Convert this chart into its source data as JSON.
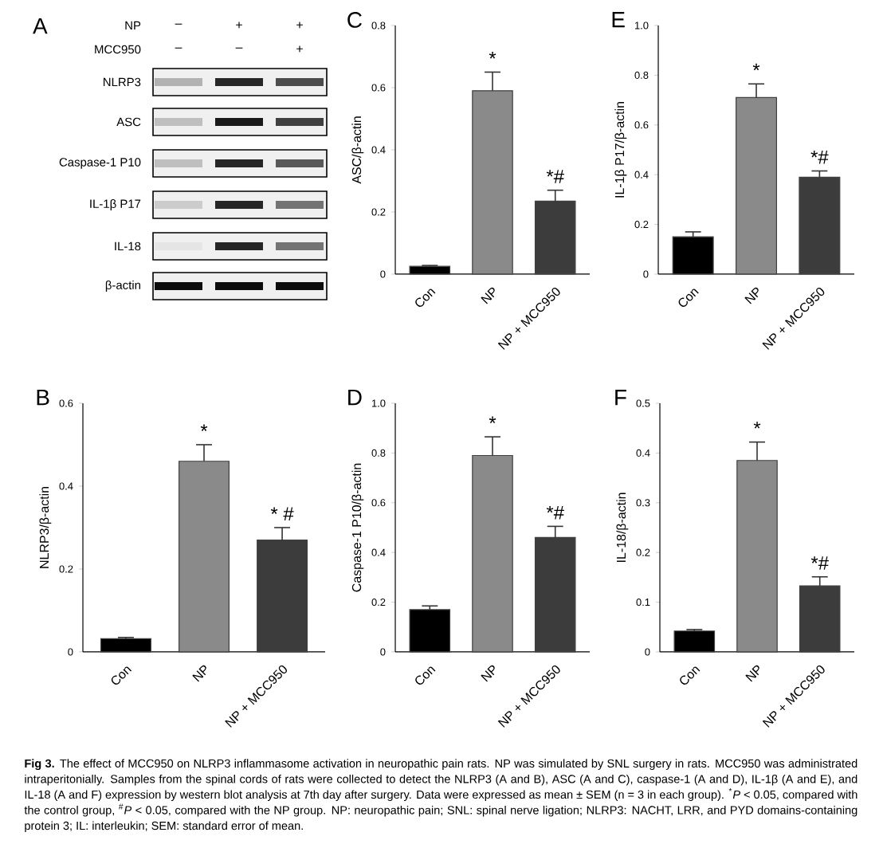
{
  "chart_data": [
    {
      "type": "other",
      "title": "A",
      "categories": [
        "NLRP3",
        "ASC",
        "Caspase-1 P10",
        "IL-1β P17",
        "IL-18",
        "β-actin"
      ],
      "annotations": [
        "NP",
        "MCC950",
        "–",
        "+",
        "+",
        "–",
        "–",
        "+"
      ]
    },
    {
      "type": "bar",
      "title": "C",
      "ylabel": "ASC/β-actin",
      "categories": [
        "Con",
        "NP",
        "NP + MCC950"
      ],
      "values": [
        0.025,
        0.59,
        0.235
      ],
      "errors": [
        [
          0.025,
          0.028
        ],
        [
          0.59,
          0.65
        ],
        [
          0.235,
          0.27
        ]
      ],
      "colors": [
        "#000000",
        "#8a8a8a",
        "#3c3c3c"
      ],
      "ylim": [
        0,
        0.8
      ],
      "yticks": [
        0,
        0.2,
        0.4,
        0.6,
        0.8
      ],
      "annotations": [
        {
          "text": "*",
          "x": "NP",
          "y": 0.65
        },
        {
          "text": "*#",
          "x": "NP + MCC950",
          "y": 0.27
        }
      ]
    },
    {
      "type": "bar",
      "title": "E",
      "ylabel": "IL-1β P17/β-actin",
      "categories": [
        "Con",
        "NP",
        "NP + MCC950"
      ],
      "values": [
        0.15,
        0.71,
        0.39
      ],
      "errors": [
        [
          0.15,
          0.17
        ],
        [
          0.71,
          0.765
        ],
        [
          0.39,
          0.415
        ]
      ],
      "colors": [
        "#000000",
        "#8a8a8a",
        "#3c3c3c"
      ],
      "ylim": [
        0,
        1.0
      ],
      "yticks": [
        0,
        0.2,
        0.4,
        0.6,
        0.8,
        {
          "value": 1.0,
          "label": "1.0"
        }
      ],
      "annotations": [
        {
          "text": "*",
          "x": "NP",
          "y": 0.765
        },
        {
          "text": "*#",
          "x": "NP + MCC950",
          "y": 0.415
        }
      ]
    },
    {
      "type": "bar",
      "title": "B",
      "ylabel": "NLRP3/β-actin",
      "categories": [
        "Con",
        "NP",
        "NP + MCC950"
      ],
      "values": [
        0.032,
        0.46,
        0.27
      ],
      "errors": [
        [
          0.032,
          0.035
        ],
        [
          0.46,
          0.5
        ],
        [
          0.27,
          0.3
        ]
      ],
      "colors": [
        "#000000",
        "#8a8a8a",
        "#3c3c3c"
      ],
      "ylim": [
        0,
        0.6
      ],
      "yticks": [
        0,
        0.2,
        0.4,
        0.6
      ],
      "annotations": [
        {
          "text": "*",
          "x": "NP",
          "y": 0.5
        },
        {
          "text": "* #",
          "x": "NP + MCC950",
          "y": 0.3
        }
      ]
    },
    {
      "type": "bar",
      "title": "D",
      "ylabel": "Caspase-1 P10/β-actin",
      "categories": [
        "Con",
        "NP",
        "NP + MCC950"
      ],
      "values": [
        0.17,
        0.79,
        0.46
      ],
      "errors": [
        [
          0.17,
          0.185
        ],
        [
          0.79,
          0.865
        ],
        [
          0.46,
          0.505
        ]
      ],
      "colors": [
        "#000000",
        "#8a8a8a",
        "#3c3c3c"
      ],
      "ylim": [
        0,
        1.0
      ],
      "yticks": [
        0,
        0.2,
        0.4,
        0.6,
        0.8,
        {
          "value": 1.0,
          "label": "1.0"
        }
      ],
      "annotations": [
        {
          "text": "*",
          "x": "NP",
          "y": 0.865
        },
        {
          "text": "*#",
          "x": "NP + MCC950",
          "y": 0.505
        }
      ]
    },
    {
      "type": "bar",
      "title": "F",
      "ylabel": "IL-18/β-actin",
      "categories": [
        "Con",
        "NP",
        "NP + MCC950"
      ],
      "values": [
        0.042,
        0.385,
        0.133
      ],
      "errors": [
        [
          0.042,
          0.045
        ],
        [
          0.385,
          0.422
        ],
        [
          0.133,
          0.151
        ]
      ],
      "colors": [
        "#000000",
        "#8a8a8a",
        "#3c3c3c"
      ],
      "ylim": [
        0,
        0.5
      ],
      "yticks": [
        0,
        0.1,
        0.2,
        0.3,
        0.4,
        0.5
      ],
      "annotations": [
        {
          "text": "*",
          "x": "NP",
          "y": 0.422
        },
        {
          "text": "*#",
          "x": "NP + MCC950",
          "y": 0.151
        },
        "**Fig 3.** The effect of MCC950 on NLRP3 inflammasome activation in neuropathic pain rats. NP was simulated by SNL surgery in rats. MCC950 was administrated intraperitonially. Samples from the spinal cords of rats were collected to detect the NLRP3 (A and B), ASC (A and C), caspase-1 (A and D), IL-1β (A and E), and IL-18 (A and F) expression by western blot analysis at 7th day after surgery. Data were expressed as mean ± SEM (n = 3 in each group). $^{*}$*P* < 0.05, compared with the control group, $^{#}$*P* < 0.05, compared with the NP group. NP: neuropathic pain; SNL: spinal nerve ligation; NLRP3: NACHT, LRR, and PYD domains-containing protein 3; IL: interleukin; SEM: standard error of mean."
      ]
    }
  ]
}
